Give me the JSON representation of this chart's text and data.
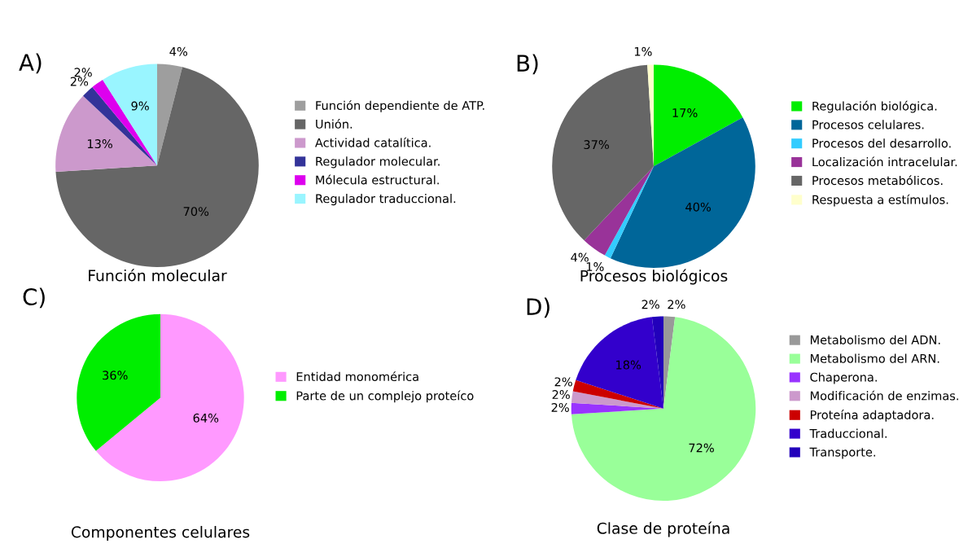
{
  "chart_data": [
    {
      "type": "pie",
      "title": "Función molecular",
      "annotations": [
        "A)"
      ],
      "legend": "right",
      "data_labels": true,
      "categories": [
        "Función dependiente de ATP.",
        "Unión.",
        "Actividad catalítica.",
        "Regulador molecular.",
        "Mólecula estructural.",
        "Regulador traduccional."
      ],
      "values": [
        4,
        70,
        13,
        2,
        2,
        9
      ],
      "value_labels": [
        "4%",
        "70%",
        "13%",
        "2%",
        "2%",
        "9%"
      ],
      "colors": [
        "#9e9e9e",
        "#666666",
        "#cc99cc",
        "#333399",
        "#dd00ee",
        "#99f5ff"
      ]
    },
    {
      "type": "pie",
      "title": "Procesos biológicos",
      "annotations": [
        "B)"
      ],
      "legend": "right",
      "data_labels": true,
      "categories": [
        "Regulación biológica.",
        "Procesos celulares.",
        "Procesos del desarrollo.",
        "Localización intracelular.",
        "Procesos metabólicos.",
        "Respuesta a estímulos."
      ],
      "values": [
        17,
        40,
        1,
        4,
        37,
        1
      ],
      "value_labels": [
        "17%",
        "40%",
        "1%",
        "4%",
        "37%",
        "1%"
      ],
      "colors": [
        "#00ee00",
        "#006699",
        "#33ccff",
        "#993399",
        "#666666",
        "#ffffcc"
      ]
    },
    {
      "type": "pie",
      "title": "Componentes celulares",
      "annotations": [
        "C)"
      ],
      "legend": "right",
      "data_labels": true,
      "categories": [
        "Entidad monomérica",
        "Parte de un complejo proteíco"
      ],
      "values": [
        64,
        36
      ],
      "value_labels": [
        "64%",
        "36%"
      ],
      "colors": [
        "#ff99ff",
        "#00ee00"
      ]
    },
    {
      "type": "pie",
      "title": "Clase de proteína",
      "annotations": [
        "D)"
      ],
      "legend": "right",
      "data_labels": true,
      "categories": [
        "Metabolismo del ADN.",
        "Metabolismo del ARN.",
        "Chaperona.",
        "Modificación de enzimas.",
        "Proteína adaptadora.",
        "Traduccional.",
        "Transporte."
      ],
      "values": [
        2,
        72,
        2,
        2,
        2,
        18,
        2
      ],
      "value_labels": [
        "2%",
        "72%",
        "2%",
        "2%",
        "2%",
        "18%",
        "2%"
      ],
      "colors": [
        "#999999",
        "#99ff99",
        "#9933ff",
        "#cc99cc",
        "#cc0000",
        "#3300cc",
        "#2200bb"
      ]
    }
  ]
}
